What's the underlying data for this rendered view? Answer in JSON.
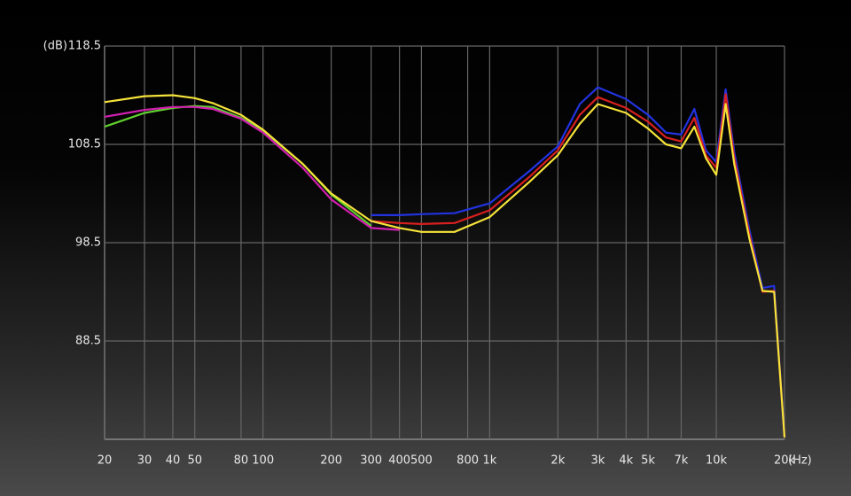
{
  "chart_data": {
    "type": "line",
    "log_x": true,
    "grid": true,
    "y_label": "(dB)",
    "x_label": "(Hz)",
    "xlim": [
      20,
      20000
    ],
    "ylim": [
      78.5,
      118.5
    ],
    "xticks": [
      20,
      30,
      40,
      50,
      80,
      100,
      200,
      300,
      400,
      500,
      800,
      {
        "value": 1000,
        "label": "1k"
      },
      {
        "value": 2000,
        "label": "2k"
      },
      {
        "value": 3000,
        "label": "3k"
      },
      {
        "value": 4000,
        "label": "4k"
      },
      {
        "value": 5000,
        "label": "5k"
      },
      {
        "value": 7000,
        "label": "7k"
      },
      {
        "value": 10000,
        "label": "10k"
      },
      {
        "value": 20000,
        "label": "20k"
      }
    ],
    "yticks": [
      88.5,
      98.5,
      108.5,
      118.5
    ],
    "x": [
      20,
      30,
      40,
      50,
      60,
      80,
      100,
      150,
      200,
      300,
      400,
      500,
      700,
      1000,
      1500,
      2000,
      2500,
      3000,
      4000,
      5000,
      6000,
      7000,
      8000,
      9000,
      10000,
      11000,
      12000,
      14000,
      16000,
      18000,
      20000
    ],
    "series": [
      {
        "color": "#5fd12e",
        "values": [
          110.3,
          111.7,
          112.2,
          112.4,
          112.3,
          111.2,
          109.9,
          106.5,
          103.4,
          100.2,
          null,
          null,
          null,
          null,
          null,
          null,
          null,
          null,
          null,
          null,
          null,
          null,
          null,
          null,
          null,
          null,
          null,
          null,
          null,
          null,
          null
        ]
      },
      {
        "color": "#d21fb0",
        "values": [
          111.3,
          112.0,
          112.3,
          112.3,
          112.1,
          111.1,
          109.7,
          106.1,
          102.9,
          100.0,
          99.8,
          null,
          null,
          null,
          null,
          null,
          null,
          null,
          null,
          null,
          null,
          null,
          null,
          null,
          null,
          null,
          null,
          null,
          null,
          null,
          null
        ]
      },
      {
        "color": "#2233e0",
        "values": [
          null,
          null,
          null,
          null,
          null,
          null,
          null,
          null,
          null,
          101.3,
          101.3,
          101.4,
          101.5,
          102.5,
          105.8,
          108.3,
          112.6,
          114.3,
          113.1,
          111.5,
          109.7,
          109.5,
          112.1,
          107.9,
          106.7,
          114.1,
          107.7,
          99.8,
          93.9,
          94.1,
          78.7
        ]
      },
      {
        "color": "#d81f1f",
        "values": [
          null,
          null,
          null,
          null,
          null,
          null,
          null,
          null,
          null,
          100.7,
          100.5,
          100.4,
          100.5,
          101.8,
          105.2,
          107.9,
          111.5,
          113.3,
          112.2,
          110.8,
          109.2,
          108.8,
          111.2,
          107.4,
          106.1,
          113.6,
          107.1,
          99.3,
          93.5,
          93.6,
          78.7
        ]
      },
      {
        "color": "#f5e23a",
        "values": [
          112.8,
          113.4,
          113.5,
          113.2,
          112.7,
          111.5,
          110.0,
          106.5,
          103.5,
          100.7,
          100.0,
          99.6,
          99.6,
          101.1,
          104.7,
          107.4,
          110.6,
          112.6,
          111.7,
          110.1,
          108.5,
          108.1,
          110.3,
          107.1,
          105.4,
          112.6,
          106.5,
          98.9,
          93.6,
          93.5,
          78.7
        ]
      }
    ]
  }
}
